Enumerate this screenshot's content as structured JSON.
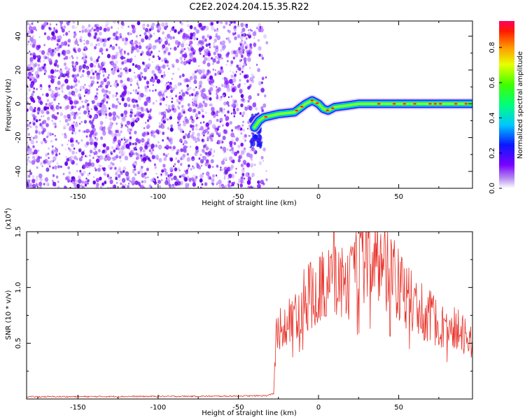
{
  "title": "C2E2.2024.204.15.35.R22",
  "chart_data": [
    {
      "type": "heatmap",
      "xlabel": "Height of straight line (km)",
      "ylabel": "Frequency (Hz)",
      "xlim": [
        -182,
        96
      ],
      "ylim": [
        -50,
        49
      ],
      "xticks": [
        -150,
        -100,
        -50,
        0,
        50
      ],
      "yticks": [
        -40,
        -20,
        0,
        20,
        40
      ],
      "colorbar": {
        "label": "Normalized spectral amplitude",
        "range": [
          0,
          0.95
        ],
        "ticks": [
          0.0,
          0.2,
          0.4,
          0.6,
          0.8
        ]
      },
      "noise_region_x": [
        -182,
        -40
      ],
      "signal_track": [
        {
          "x": -40,
          "y": -14
        },
        {
          "x": -37,
          "y": -10
        },
        {
          "x": -34,
          "y": -8
        },
        {
          "x": -25,
          "y": -6
        },
        {
          "x": -15,
          "y": -5
        },
        {
          "x": -8,
          "y": 0
        },
        {
          "x": -4,
          "y": 2
        },
        {
          "x": 0,
          "y": 0
        },
        {
          "x": 3,
          "y": -3
        },
        {
          "x": 6,
          "y": -4
        },
        {
          "x": 10,
          "y": -2
        },
        {
          "x": 18,
          "y": -1
        },
        {
          "x": 25,
          "y": 0
        },
        {
          "x": 50,
          "y": 0
        },
        {
          "x": 75,
          "y": 0
        },
        {
          "x": 95,
          "y": 0
        }
      ]
    },
    {
      "type": "line",
      "xlabel": "Height of straight line (km)",
      "ylabel": "SNR (10 * v/v)",
      "yscale_label": "(x10",
      "yscale_exp": "4",
      "yscale_close": ")",
      "xlim": [
        -182,
        96
      ],
      "ylim": [
        0,
        1.5
      ],
      "xticks": [
        -150,
        -100,
        -50,
        0,
        50
      ],
      "yticks": [
        0.5,
        1.0,
        1.5
      ],
      "ytick_labels": [
        "0.5",
        "1.0",
        "1.5"
      ],
      "color": "#e8332a",
      "envelope": [
        {
          "x": -182,
          "y": 0.02
        },
        {
          "x": -60,
          "y": 0.025
        },
        {
          "x": -32,
          "y": 0.03
        },
        {
          "x": -28,
          "y": 0.05
        },
        {
          "x": -26,
          "y": 0.7
        },
        {
          "x": -20,
          "y": 0.65
        },
        {
          "x": -15,
          "y": 0.8
        },
        {
          "x": -10,
          "y": 0.9
        },
        {
          "x": -5,
          "y": 0.95
        },
        {
          "x": 0,
          "y": 1.0
        },
        {
          "x": 5,
          "y": 1.05
        },
        {
          "x": 10,
          "y": 1.1
        },
        {
          "x": 15,
          "y": 1.05
        },
        {
          "x": 20,
          "y": 1.08
        },
        {
          "x": 25,
          "y": 1.2
        },
        {
          "x": 30,
          "y": 1.3
        },
        {
          "x": 35,
          "y": 1.28
        },
        {
          "x": 40,
          "y": 1.2
        },
        {
          "x": 45,
          "y": 1.15
        },
        {
          "x": 50,
          "y": 1.05
        },
        {
          "x": 55,
          "y": 0.95
        },
        {
          "x": 60,
          "y": 0.85
        },
        {
          "x": 65,
          "y": 0.8
        },
        {
          "x": 70,
          "y": 0.75
        },
        {
          "x": 75,
          "y": 0.7
        },
        {
          "x": 80,
          "y": 0.68
        },
        {
          "x": 85,
          "y": 0.65
        },
        {
          "x": 90,
          "y": 0.6
        },
        {
          "x": 95,
          "y": 0.55
        }
      ]
    }
  ]
}
